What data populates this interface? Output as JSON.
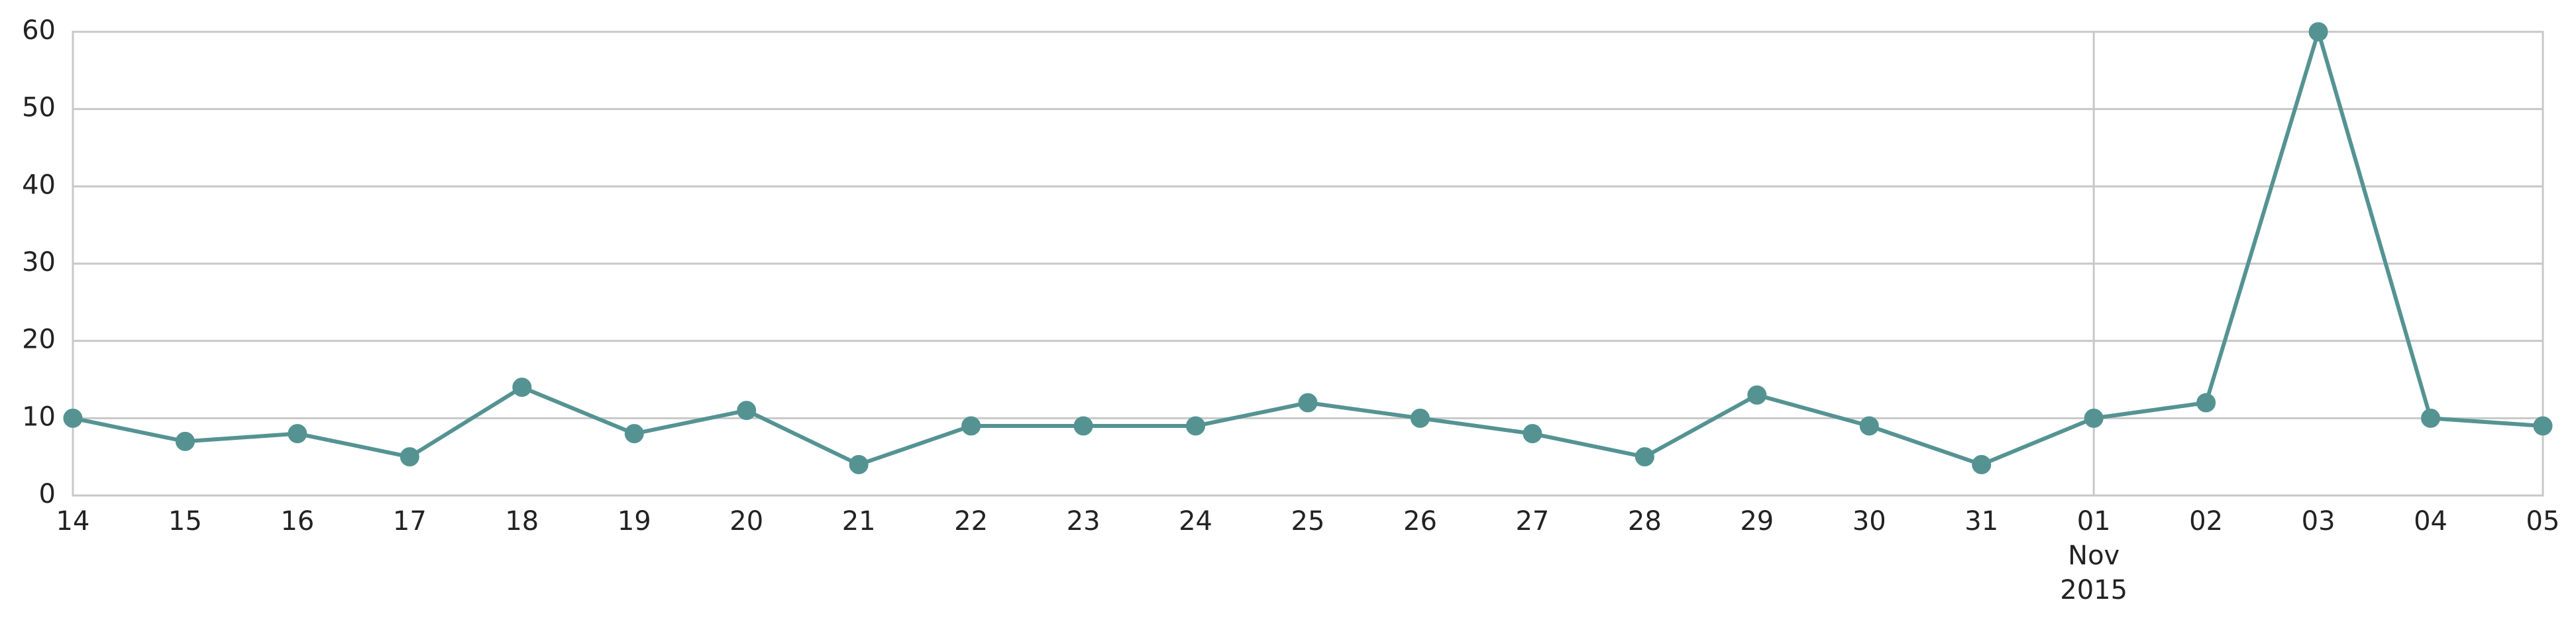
{
  "chart_data": {
    "type": "line",
    "x": [
      "2015-10-14",
      "2015-10-15",
      "2015-10-16",
      "2015-10-17",
      "2015-10-18",
      "2015-10-19",
      "2015-10-20",
      "2015-10-21",
      "2015-10-22",
      "2015-10-23",
      "2015-10-24",
      "2015-10-25",
      "2015-10-26",
      "2015-10-27",
      "2015-10-28",
      "2015-10-29",
      "2015-10-30",
      "2015-10-31",
      "2015-11-01",
      "2015-11-02",
      "2015-11-03",
      "2015-11-04",
      "2015-11-05"
    ],
    "x_tick_labels": [
      [
        "14"
      ],
      [
        "15"
      ],
      [
        "16"
      ],
      [
        "17"
      ],
      [
        "18"
      ],
      [
        "19"
      ],
      [
        "20"
      ],
      [
        "21"
      ],
      [
        "22"
      ],
      [
        "23"
      ],
      [
        "24"
      ],
      [
        "25"
      ],
      [
        "26"
      ],
      [
        "27"
      ],
      [
        "28"
      ],
      [
        "29"
      ],
      [
        "30"
      ],
      [
        "31"
      ],
      [
        "01",
        "Nov",
        "2015"
      ],
      [
        "02"
      ],
      [
        "03"
      ],
      [
        "04"
      ],
      [
        "05"
      ]
    ],
    "series": [
      {
        "values": [
          10,
          7,
          8,
          5,
          14,
          8,
          11,
          4,
          9,
          9,
          9,
          12,
          10,
          8,
          5,
          13,
          9,
          4,
          10,
          12,
          60,
          10,
          9
        ],
        "color": "#559393"
      }
    ],
    "ylim": [
      0,
      60
    ],
    "y_ticks": [
      "0",
      "10",
      "20",
      "30",
      "40",
      "50",
      "60"
    ],
    "grid": {
      "horizontal": true,
      "vertical_at": [
        "2015-11-01"
      ]
    },
    "xlabel": "",
    "ylabel": "",
    "title": ""
  }
}
